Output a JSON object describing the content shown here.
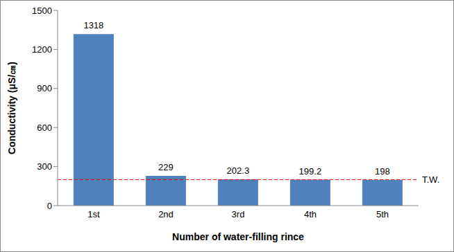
{
  "chart_data": {
    "type": "bar",
    "categories": [
      "1st",
      "2nd",
      "3rd",
      "4th",
      "5th"
    ],
    "values": [
      1318,
      229,
      202.3,
      199.2,
      198
    ],
    "color": "#4f81bd",
    "ylim": [
      0,
      1500
    ],
    "yticks": [
      0,
      300,
      600,
      900,
      1200,
      1500
    ],
    "grid": false,
    "data_labels": true,
    "x_label": "Number of water-filling rince",
    "y_label": "Conductivity (μS/㎝)",
    "annotations": [
      {
        "type": "hline",
        "y": 200,
        "label": "T.W.",
        "color": "#ff0000",
        "line_style": "dashed"
      }
    ]
  }
}
